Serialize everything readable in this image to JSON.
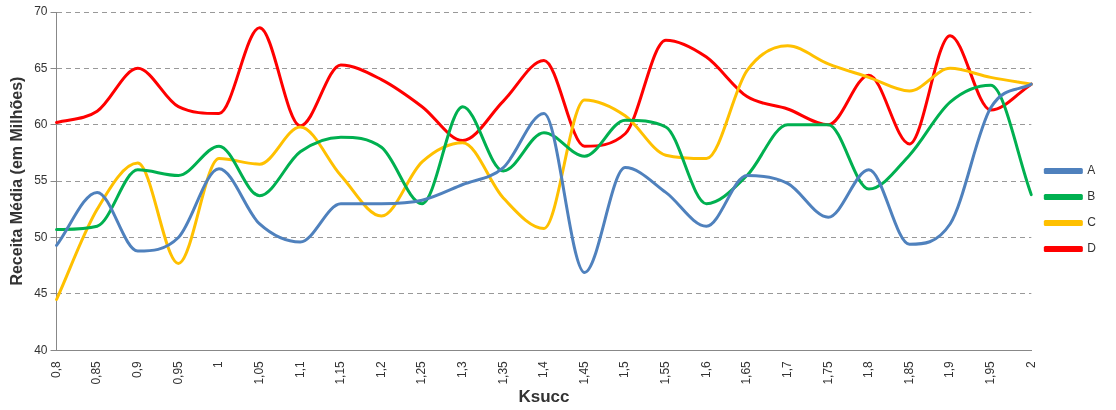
{
  "chart_data": {
    "type": "line",
    "xlabel": "Ksucc",
    "ylabel": "Receita Média (em Milhões)",
    "categories": [
      "0,8",
      "0,85",
      "0,9",
      "0,95",
      "1",
      "1,05",
      "1,1",
      "1,15",
      "1,2",
      "1,25",
      "1,3",
      "1,35",
      "1,4",
      "1,45",
      "1,5",
      "1,55",
      "1,6",
      "1,65",
      "1,7",
      "1,75",
      "1,8",
      "1,85",
      "1,9",
      "1,95",
      "2"
    ],
    "series": [
      {
        "name": "A",
        "color": "#4f81bd",
        "values": [
          49.3,
          54,
          48.8,
          50,
          56.1,
          51.2,
          49.6,
          53,
          53,
          53.3,
          54.7,
          56.2,
          61,
          46.9,
          56.2,
          54,
          51,
          55.5,
          54.8,
          51.8,
          56,
          49.4,
          51.2,
          61.5,
          63.6
        ]
      },
      {
        "name": "B",
        "color": "#00b050",
        "values": [
          50.7,
          51,
          56,
          55.5,
          58.1,
          53.7,
          57.6,
          58.9,
          58,
          53,
          61.6,
          55.9,
          59.3,
          57.2,
          60.4,
          59.8,
          53,
          55.5,
          60,
          60,
          54.3,
          57.3,
          62,
          63.5,
          53.8
        ]
      },
      {
        "name": "C",
        "color": "#ffc000",
        "values": [
          44.5,
          52.5,
          56.6,
          47.7,
          57,
          56.5,
          59.8,
          55.5,
          51.9,
          56.7,
          58.4,
          53.5,
          50.8,
          62.2,
          60.8,
          57.3,
          57,
          64.8,
          67,
          65.4,
          64.2,
          63,
          65,
          64.2,
          63.6
        ]
      },
      {
        "name": "D",
        "color": "#ff0000",
        "values": [
          60.2,
          61.2,
          65,
          61.6,
          61,
          68.6,
          59.9,
          65.3,
          64,
          61.6,
          58.6,
          62.1,
          65.7,
          58.1,
          59.2,
          67.5,
          66,
          62.5,
          61.4,
          60,
          64.4,
          58.3,
          67.9,
          61.3,
          63.6
        ]
      }
    ],
    "ylim": [
      40,
      70
    ],
    "yticks": [
      40,
      45,
      50,
      55,
      60,
      65,
      70
    ],
    "grid": "y",
    "legend": "right",
    "marker": "none",
    "line_style": "solid"
  }
}
